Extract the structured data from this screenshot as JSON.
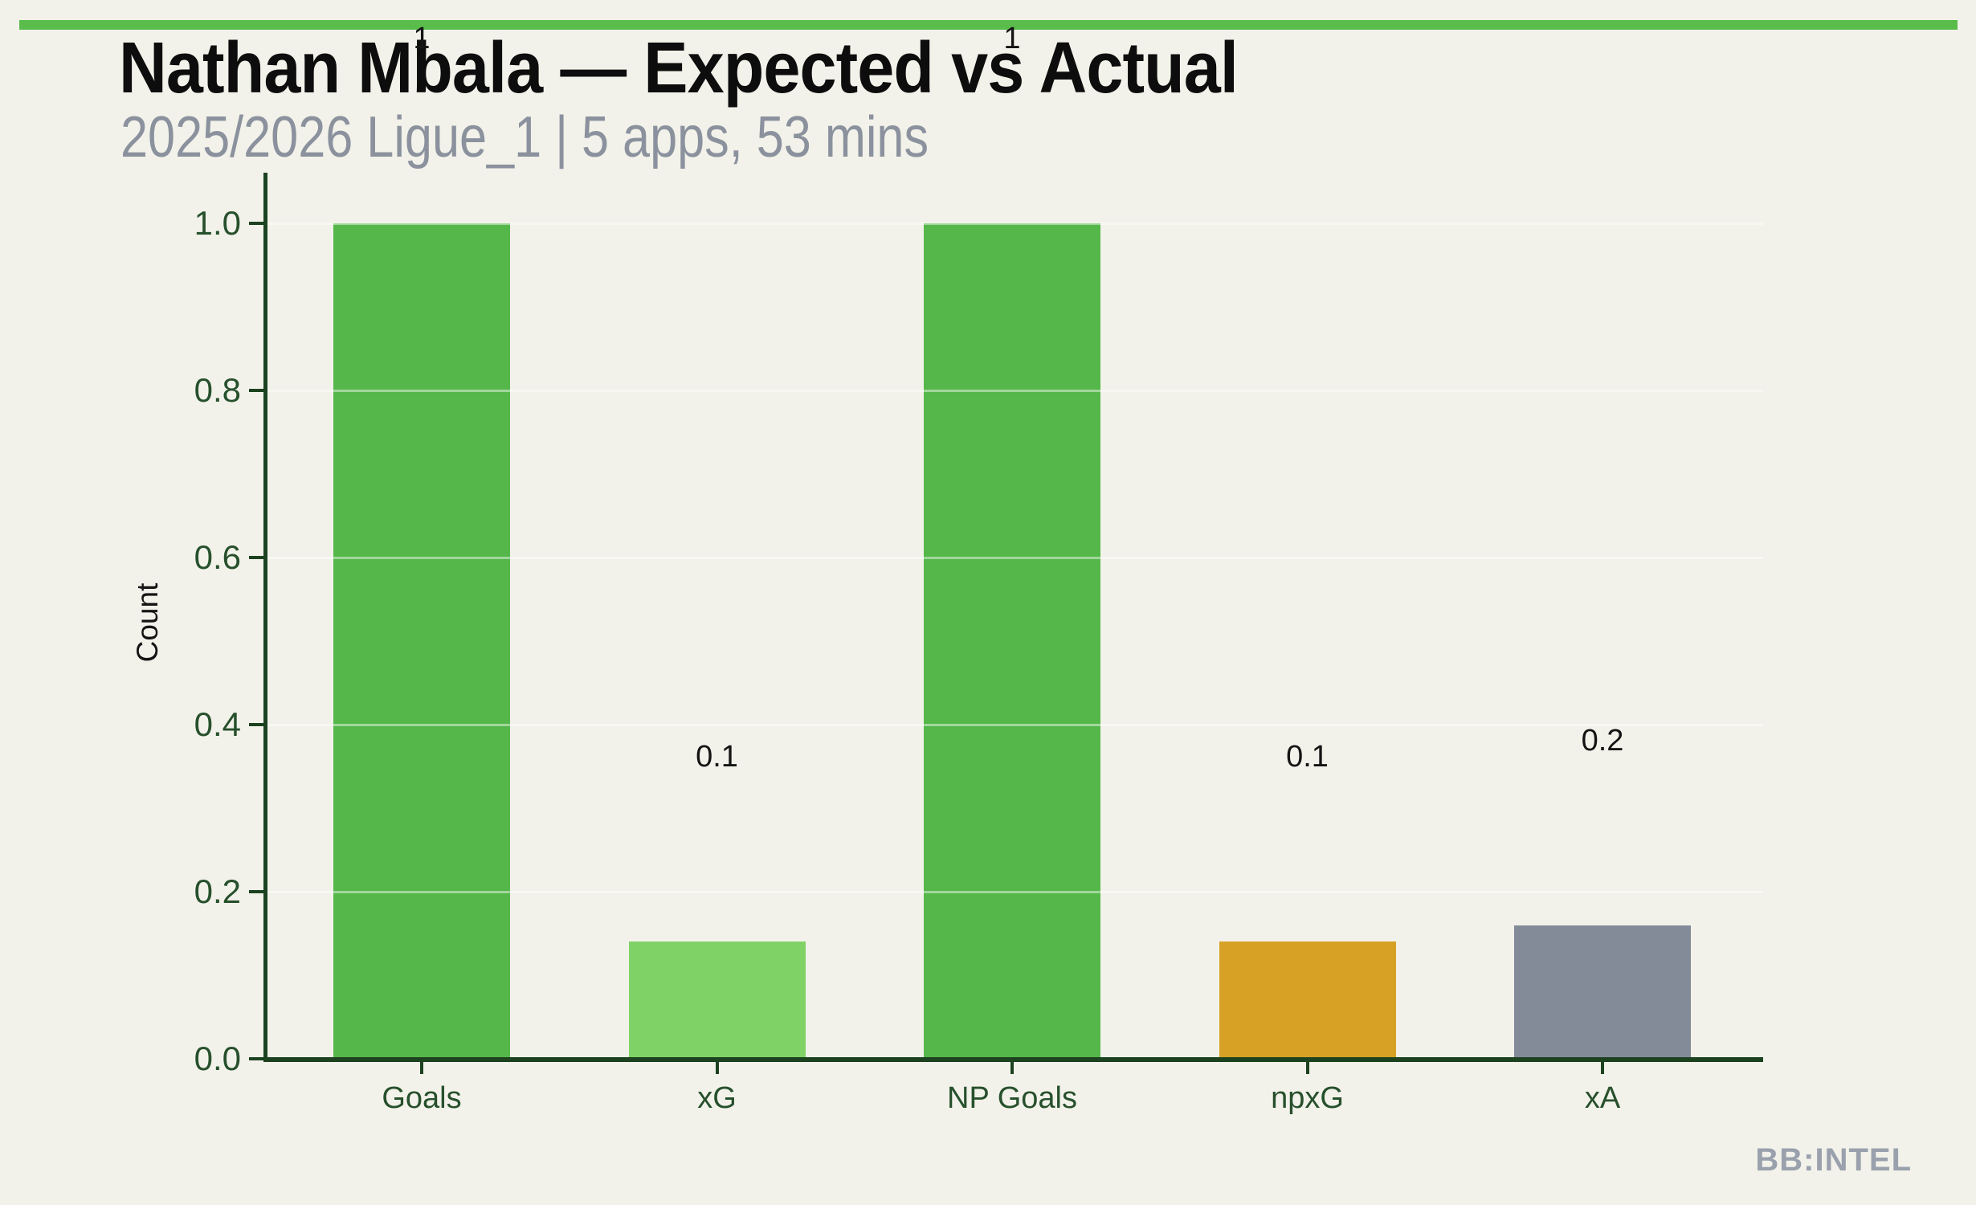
{
  "page": {
    "background_color": "#f2f2ea",
    "accent_bar_color": "#5abc4b"
  },
  "header": {
    "title": "Nathan Mbala — Expected vs Actual",
    "subtitle": "2025/2026 Ligue_1 | 5 apps, 53 mins"
  },
  "chart_data": {
    "type": "bar",
    "title": "Nathan Mbala — Expected vs Actual",
    "subtitle": "2025/2026 Ligue_1 | 5 apps, 53 mins",
    "categories": [
      "Goals",
      "xG",
      "NP Goals",
      "npxG",
      "xA"
    ],
    "values": [
      1.0,
      0.14,
      1.0,
      0.14,
      0.16
    ],
    "bar_labels": [
      "1",
      "0.1",
      "1",
      "0.1",
      "0.2"
    ],
    "bar_colors": [
      "#55b74a",
      "#7fd265",
      "#55b74a",
      "#d6a125",
      "#838b99"
    ],
    "xlabel": "",
    "ylabel": "Count",
    "ylim": [
      0.0,
      1.0
    ],
    "yticks": [
      "0.0",
      "0.2",
      "0.4",
      "0.6",
      "0.8",
      "1.0"
    ],
    "grid": true,
    "legend": false,
    "axis_color": "#1c421f",
    "tick_label_color": "#27502c",
    "gridline_color": "rgba(255,255,255,0.45)",
    "value_label_color": "#141414"
  },
  "footer": {
    "watermark": "BB:INTEL"
  }
}
